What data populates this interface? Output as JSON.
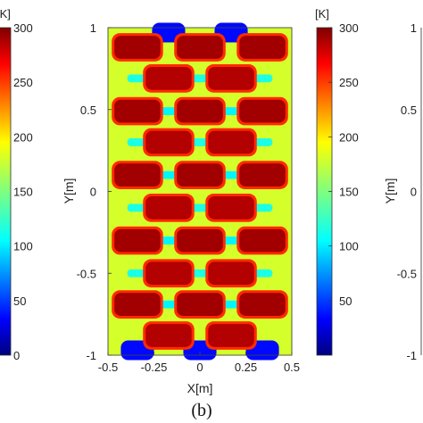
{
  "chart_data": {
    "type": "heatmap",
    "panel_caption": "(b)",
    "xlabel": "X[m]",
    "ylabel": "Y[m]",
    "xlim": [
      -0.5,
      0.5
    ],
    "ylim": [
      -1,
      1
    ],
    "x_ticks": [
      "-0.5",
      "-0.25",
      "0",
      "0.25",
      "0.5"
    ],
    "y_ticks": [
      "1",
      "0.5",
      "0",
      "-0.5",
      "-1"
    ],
    "colorbar": {
      "unit": "[K]",
      "range": [
        0,
        300
      ],
      "ticks": [
        "300",
        "250",
        "200",
        "150",
        "100",
        "50"
      ],
      "colormap": "jet"
    },
    "background_level": 175,
    "hot_spots": [
      {
        "x": -0.34,
        "y": 0.88,
        "value": 290
      },
      {
        "x": 0.0,
        "y": 0.88,
        "value": 290
      },
      {
        "x": 0.34,
        "y": 0.88,
        "value": 290
      },
      {
        "x": -0.17,
        "y": 0.69,
        "value": 285
      },
      {
        "x": 0.17,
        "y": 0.69,
        "value": 285
      },
      {
        "x": -0.34,
        "y": 0.49,
        "value": 290
      },
      {
        "x": 0.0,
        "y": 0.49,
        "value": 290
      },
      {
        "x": 0.34,
        "y": 0.49,
        "value": 290
      },
      {
        "x": -0.17,
        "y": 0.3,
        "value": 285
      },
      {
        "x": 0.17,
        "y": 0.3,
        "value": 285
      },
      {
        "x": -0.34,
        "y": 0.1,
        "value": 290
      },
      {
        "x": 0.0,
        "y": 0.1,
        "value": 290
      },
      {
        "x": 0.34,
        "y": 0.1,
        "value": 290
      },
      {
        "x": -0.17,
        "y": -0.1,
        "value": 285
      },
      {
        "x": 0.17,
        "y": -0.1,
        "value": 285
      },
      {
        "x": -0.34,
        "y": -0.3,
        "value": 290
      },
      {
        "x": 0.0,
        "y": -0.3,
        "value": 290
      },
      {
        "x": 0.34,
        "y": -0.3,
        "value": 290
      },
      {
        "x": -0.17,
        "y": -0.5,
        "value": 285
      },
      {
        "x": 0.17,
        "y": -0.5,
        "value": 285
      },
      {
        "x": -0.34,
        "y": -0.69,
        "value": 290
      },
      {
        "x": 0.0,
        "y": -0.69,
        "value": 290
      },
      {
        "x": 0.34,
        "y": -0.69,
        "value": 290
      },
      {
        "x": -0.17,
        "y": -0.88,
        "value": 285
      },
      {
        "x": 0.17,
        "y": -0.88,
        "value": 285
      }
    ],
    "cool_spots": [
      {
        "x": -0.17,
        "y": 0.49,
        "value": 110
      },
      {
        "x": 0.17,
        "y": 0.49,
        "value": 110
      },
      {
        "x": -0.17,
        "y": 0.1,
        "value": 110
      },
      {
        "x": 0.17,
        "y": 0.1,
        "value": 110
      },
      {
        "x": -0.17,
        "y": -0.3,
        "value": 110
      },
      {
        "x": 0.17,
        "y": -0.3,
        "value": 110
      },
      {
        "x": -0.17,
        "y": -0.69,
        "value": 110
      },
      {
        "x": 0.17,
        "y": -0.69,
        "value": 110
      },
      {
        "x": -0.34,
        "y": 0.69,
        "value": 120
      },
      {
        "x": 0.0,
        "y": 0.69,
        "value": 120
      },
      {
        "x": 0.34,
        "y": 0.69,
        "value": 120
      },
      {
        "x": -0.34,
        "y": 0.3,
        "value": 120
      },
      {
        "x": 0.0,
        "y": 0.3,
        "value": 120
      },
      {
        "x": 0.34,
        "y": 0.3,
        "value": 120
      },
      {
        "x": -0.34,
        "y": -0.1,
        "value": 120
      },
      {
        "x": 0.0,
        "y": -0.1,
        "value": 120
      },
      {
        "x": 0.34,
        "y": -0.1,
        "value": 120
      },
      {
        "x": -0.34,
        "y": -0.5,
        "value": 120
      },
      {
        "x": 0.0,
        "y": -0.5,
        "value": 120
      },
      {
        "x": 0.34,
        "y": -0.5,
        "value": 120
      }
    ],
    "cold_notches": [
      {
        "x": -0.17,
        "y": 0.97,
        "value": 40
      },
      {
        "x": 0.17,
        "y": 0.97,
        "value": 40
      },
      {
        "x": -0.34,
        "y": -0.97,
        "value": 40
      },
      {
        "x": 0.0,
        "y": -0.97,
        "value": 40
      },
      {
        "x": 0.34,
        "y": -0.97,
        "value": 40
      }
    ]
  },
  "left_panel": {
    "colorbar_unit": "[K]",
    "colorbar_ticks": [
      "300",
      "250",
      "200",
      "150",
      "100",
      "50",
      "0"
    ]
  },
  "right_panel": {
    "ylabel": "Y[m]",
    "y_ticks": [
      "1",
      "0.5",
      "0",
      "-0.5",
      "-1"
    ]
  }
}
